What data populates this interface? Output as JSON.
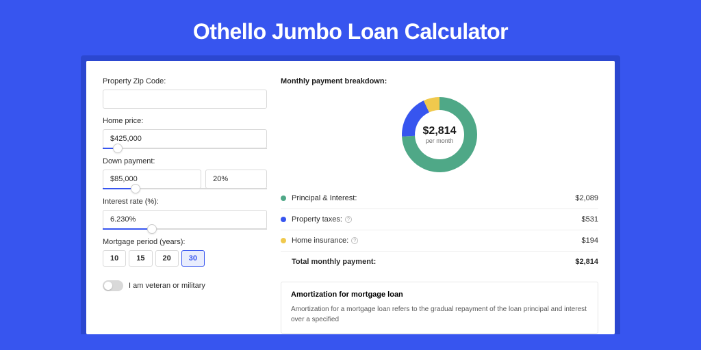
{
  "page": {
    "title": "Othello Jumbo Loan Calculator",
    "bg_color": "#3755ef",
    "card_bg": "#ffffff",
    "card_wrap_bg": "#2b47d0"
  },
  "form": {
    "zip": {
      "label": "Property Zip Code:",
      "value": ""
    },
    "home_price": {
      "label": "Home price:",
      "value": "$425,000",
      "slider_pct": 9
    },
    "down_payment": {
      "label": "Down payment:",
      "amount": "$85,000",
      "pct": "20%",
      "slider_pct": 20
    },
    "interest_rate": {
      "label": "Interest rate (%):",
      "value": "6.230%",
      "slider_pct": 30
    },
    "mortgage_period": {
      "label": "Mortgage period (years):",
      "options": [
        "10",
        "15",
        "20",
        "30"
      ],
      "selected": "30"
    },
    "veteran": {
      "label": "I am veteran or military",
      "on": false
    }
  },
  "breakdown": {
    "title": "Monthly payment breakdown:",
    "amount": "$2,814",
    "sublabel": "per month",
    "donut": {
      "segments": [
        {
          "label": "Principal & Interest:",
          "value": "$2,089",
          "color": "#4fa887",
          "pct": 74.2
        },
        {
          "label": "Property taxes:",
          "value": "$531",
          "color": "#3755ef",
          "pct": 18.9,
          "info": true
        },
        {
          "label": "Home insurance:",
          "value": "$194",
          "color": "#f0c94d",
          "pct": 6.9,
          "info": true
        }
      ]
    },
    "total": {
      "label": "Total monthly payment:",
      "value": "$2,814"
    }
  },
  "amortization": {
    "title": "Amortization for mortgage loan",
    "text": "Amortization for a mortgage loan refers to the gradual repayment of the loan principal and interest over a specified"
  }
}
